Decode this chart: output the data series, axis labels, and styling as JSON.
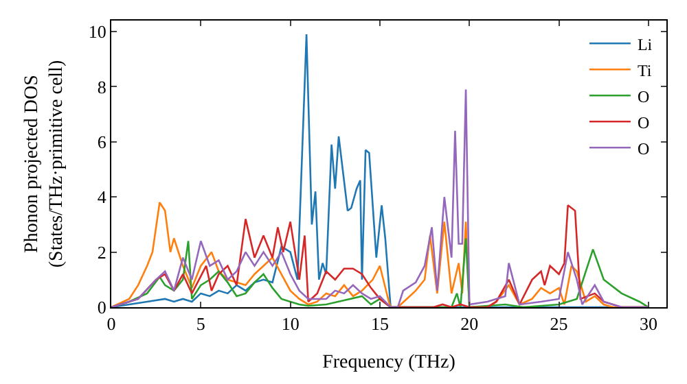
{
  "chart_data": {
    "type": "line",
    "xlabel": "Frequency (THz)",
    "ylabel": "Phonon projected DOS\n(States/THz·primitive cell)",
    "xlim": [
      0,
      31
    ],
    "ylim": [
      0,
      10.4
    ],
    "xticks": [
      0,
      5,
      10,
      15,
      20,
      25,
      30
    ],
    "yticks": [
      0,
      2,
      4,
      6,
      8,
      10
    ],
    "legend": "top right",
    "marker": "none",
    "line_style": "solid",
    "series": [
      {
        "name": "Li",
        "color": "#1f77b4",
        "x": [
          0,
          1,
          2,
          3,
          3.5,
          4,
          4.5,
          5,
          5.5,
          6,
          6.5,
          7,
          7.5,
          8,
          8.5,
          9,
          9.5,
          10,
          10.4,
          10.9,
          11.2,
          11.4,
          11.6,
          11.8,
          12,
          12.3,
          12.5,
          12.7,
          13.2,
          13.4,
          13.7,
          13.9,
          14.0,
          14.2,
          14.4,
          14.8,
          15.1,
          15.3,
          15.6,
          20,
          30
        ],
        "values": [
          0,
          0.1,
          0.2,
          0.3,
          0.2,
          0.3,
          0.2,
          0.5,
          0.4,
          0.6,
          0.5,
          0.8,
          0.6,
          0.9,
          1.0,
          0.9,
          2.2,
          2.0,
          1.0,
          9.9,
          3.0,
          4.2,
          1.0,
          1.6,
          1.2,
          5.9,
          4.3,
          6.2,
          3.5,
          3.6,
          4.3,
          4.6,
          1.0,
          5.7,
          5.6,
          1.8,
          3.7,
          2.5,
          0,
          0,
          0
        ]
      },
      {
        "name": "Ti",
        "color": "#ff7f0e",
        "x": [
          0,
          1,
          1.5,
          2,
          2.3,
          2.7,
          3.0,
          3.3,
          3.5,
          4,
          4.5,
          5,
          5.6,
          6,
          6.5,
          7,
          7.5,
          8,
          8.5,
          9,
          9.5,
          10,
          10.5,
          11,
          11.5,
          12,
          12.5,
          13,
          13.5,
          14,
          14.6,
          15,
          15.5,
          15.6,
          16,
          16.5,
          17,
          17.5,
          17.8,
          18.2,
          18.6,
          19.0,
          19.4,
          19.6,
          19.8,
          20.0,
          21,
          21.5,
          22.2,
          22.8,
          23.5,
          24,
          24.5,
          25,
          25.3,
          25.7,
          26,
          26.5,
          27,
          27.5,
          28,
          30
        ],
        "values": [
          0,
          0.3,
          0.8,
          1.5,
          2.0,
          3.8,
          3.5,
          2.0,
          2.5,
          1.5,
          0.7,
          1.5,
          2.0,
          1.3,
          1.0,
          0.9,
          0.8,
          1.2,
          1.5,
          1.8,
          1.2,
          0.6,
          0.3,
          0.1,
          0.2,
          0.5,
          0.4,
          0.8,
          0.4,
          0.6,
          1.0,
          1.5,
          0.2,
          0,
          0,
          0.3,
          0.6,
          1.0,
          2.6,
          0.5,
          3.1,
          0.5,
          1.6,
          0.5,
          3.1,
          0,
          0,
          0.2,
          0.8,
          0.1,
          0.3,
          0.7,
          0.5,
          0.7,
          0.1,
          1.5,
          1.3,
          0.2,
          0.4,
          0.1,
          0,
          0
        ]
      },
      {
        "name": "O",
        "color": "#2ca02c",
        "x": [
          0,
          1,
          2,
          2.7,
          3,
          3.5,
          4,
          4.3,
          4.5,
          5,
          5.5,
          6,
          6.5,
          7,
          7.5,
          8,
          8.5,
          9,
          9.5,
          10,
          10.5,
          11,
          12,
          13,
          14,
          14.5,
          15,
          15.6,
          19.0,
          19.3,
          19.5,
          19.8,
          20,
          22,
          23,
          25,
          26,
          26.9,
          27.5,
          28.5,
          29.5,
          30
        ],
        "values": [
          0,
          0.2,
          0.5,
          1.1,
          0.8,
          0.6,
          1.0,
          2.4,
          0.3,
          0.8,
          1.0,
          1.3,
          0.9,
          0.4,
          0.5,
          0.9,
          1.2,
          0.7,
          0.3,
          0.2,
          0.1,
          0.05,
          0.1,
          0.25,
          0.4,
          0.1,
          0.3,
          0,
          0,
          0.5,
          0,
          2.5,
          0,
          0.1,
          0,
          0.1,
          0.3,
          2.1,
          1.0,
          0.5,
          0.2,
          0
        ]
      },
      {
        "name": "O",
        "color": "#d62728",
        "x": [
          0,
          1.5,
          2.5,
          3,
          3.5,
          4,
          4.5,
          5.3,
          5.6,
          6,
          6.5,
          7,
          7.5,
          8,
          8.5,
          9,
          9.3,
          9.6,
          10,
          10.5,
          10.8,
          11,
          11.5,
          12,
          12.5,
          13,
          13.5,
          14,
          14.5,
          15,
          15.6,
          18,
          18.5,
          19,
          19.5,
          20,
          21,
          21.5,
          22.2,
          22.8,
          23.5,
          24,
          24.2,
          24.5,
          25,
          25.3,
          25.5,
          25.9,
          26.2,
          27,
          27.5,
          28.5,
          30
        ],
        "values": [
          0,
          0.3,
          1.0,
          1.2,
          0.6,
          1.2,
          0.5,
          1.5,
          0.6,
          1.2,
          1.5,
          0.8,
          3.2,
          1.8,
          2.6,
          1.8,
          2.9,
          2.0,
          3.1,
          1.0,
          2.6,
          0.2,
          0.5,
          1.3,
          1.0,
          1.4,
          1.4,
          1.2,
          0.7,
          0.3,
          0,
          0,
          0.1,
          0,
          0.1,
          0,
          0,
          0.2,
          1.0,
          0.1,
          1.0,
          1.3,
          0.8,
          1.5,
          1.2,
          1.6,
          3.7,
          3.5,
          0.3,
          0.5,
          0.2,
          0,
          0
        ]
      },
      {
        "name": "O",
        "color": "#9467bd",
        "x": [
          0,
          1.5,
          2.5,
          3,
          3.5,
          4,
          4.5,
          5,
          5.5,
          6,
          6.5,
          7,
          7.5,
          8,
          8.5,
          9,
          9.5,
          10,
          10.5,
          11,
          12,
          12.5,
          13,
          13.5,
          14,
          14.5,
          15,
          15.6,
          16,
          16.3,
          17,
          17.5,
          17.9,
          18.2,
          18.6,
          19.0,
          19.2,
          19.4,
          19.6,
          19.8,
          20,
          21,
          22,
          22.2,
          22.8,
          24,
          25,
          25.5,
          26,
          26.3,
          27,
          27.5,
          28.5,
          30
        ],
        "values": [
          0,
          0.3,
          1.0,
          1.3,
          0.6,
          1.8,
          1.0,
          2.4,
          1.5,
          1.7,
          1.0,
          1.3,
          2.0,
          1.5,
          2.0,
          1.5,
          2.0,
          1.2,
          0.6,
          0.3,
          0.3,
          0.6,
          0.5,
          0.8,
          0.5,
          0.3,
          0.4,
          0,
          0,
          0.6,
          0.9,
          1.5,
          2.9,
          0.6,
          4.0,
          1.8,
          6.4,
          2.3,
          2.3,
          7.9,
          0.1,
          0.2,
          0.4,
          1.6,
          0.1,
          0.2,
          0.3,
          2.0,
          1.0,
          0.1,
          0.8,
          0.2,
          0,
          0
        ]
      }
    ]
  }
}
